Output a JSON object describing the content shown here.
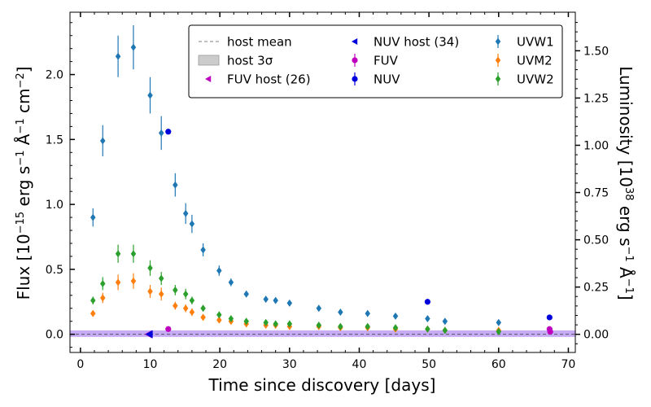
{
  "chart_data": {
    "type": "scatter",
    "xlabel": "Time since discovery [days]",
    "ylabel": "Flux [10^-15 erg s^-1 Å^-1 cm^-2]",
    "ylabel_right": "Luminosity [10^38 erg s^-1 Å^-1]",
    "xlim": [
      -1.5,
      71
    ],
    "ylim": [
      -0.14,
      2.48
    ],
    "ylim_right": [
      -0.096,
      1.704
    ],
    "xticks": [
      0,
      10,
      20,
      30,
      40,
      50,
      60,
      70
    ],
    "yticks": [
      0.0,
      0.5,
      1.0,
      1.5,
      2.0
    ],
    "yticks_right": [
      0.0,
      0.25,
      0.5,
      0.75,
      1.0,
      1.25,
      1.5
    ],
    "xtick_labels": [
      "0",
      "10",
      "20",
      "30",
      "40",
      "50",
      "60",
      "70"
    ],
    "ytick_labels": [
      "0.0",
      "0.5",
      "1.0",
      "1.5",
      "2.0"
    ],
    "ytick_labels_right": [
      "0.00",
      "0.25",
      "0.50",
      "0.75",
      "1.00",
      "1.25",
      "1.50"
    ],
    "legend_position": "top-right",
    "host": {
      "mean": 0.0,
      "band_3sigma": [
        -0.02,
        0.03
      ],
      "host_color": "#9966ee"
    },
    "series": [
      {
        "name": "UVW1",
        "color": "#1f77b4",
        "marker": "diamond",
        "points": [
          {
            "x": 1.8,
            "y": 0.9,
            "e": 0.07
          },
          {
            "x": 3.2,
            "y": 1.49,
            "e": 0.12
          },
          {
            "x": 5.4,
            "y": 2.14,
            "e": 0.16
          },
          {
            "x": 7.6,
            "y": 2.21,
            "e": 0.17
          },
          {
            "x": 10.0,
            "y": 1.84,
            "e": 0.14
          },
          {
            "x": 11.6,
            "y": 1.55,
            "e": 0.13
          },
          {
            "x": 13.6,
            "y": 1.15,
            "e": 0.09
          },
          {
            "x": 15.1,
            "y": 0.93,
            "e": 0.08
          },
          {
            "x": 16.0,
            "y": 0.85,
            "e": 0.07
          },
          {
            "x": 17.6,
            "y": 0.65,
            "e": 0.05
          },
          {
            "x": 19.9,
            "y": 0.49,
            "e": 0.04
          },
          {
            "x": 21.6,
            "y": 0.4,
            "e": 0.03
          },
          {
            "x": 23.8,
            "y": 0.31,
            "e": 0.02
          },
          {
            "x": 26.6,
            "y": 0.27,
            "e": 0.02
          },
          {
            "x": 28.0,
            "y": 0.26,
            "e": 0.02
          },
          {
            "x": 30.0,
            "y": 0.24,
            "e": 0.02
          },
          {
            "x": 34.2,
            "y": 0.2,
            "e": 0.015
          },
          {
            "x": 37.3,
            "y": 0.17,
            "e": 0.015
          },
          {
            "x": 41.2,
            "y": 0.16,
            "e": 0.015
          },
          {
            "x": 45.2,
            "y": 0.14,
            "e": 0.015
          },
          {
            "x": 49.8,
            "y": 0.12,
            "e": 0.015
          },
          {
            "x": 52.3,
            "y": 0.1,
            "e": 0.015
          },
          {
            "x": 60.0,
            "y": 0.09,
            "e": 0.015
          }
        ]
      },
      {
        "name": "UVM2",
        "color": "#ff7f0e",
        "marker": "diamond",
        "points": [
          {
            "x": 1.8,
            "y": 0.16,
            "e": 0.02
          },
          {
            "x": 3.2,
            "y": 0.28,
            "e": 0.04
          },
          {
            "x": 5.4,
            "y": 0.4,
            "e": 0.06
          },
          {
            "x": 7.6,
            "y": 0.41,
            "e": 0.06
          },
          {
            "x": 10.0,
            "y": 0.33,
            "e": 0.05
          },
          {
            "x": 11.6,
            "y": 0.31,
            "e": 0.05
          },
          {
            "x": 13.6,
            "y": 0.22,
            "e": 0.03
          },
          {
            "x": 15.1,
            "y": 0.2,
            "e": 0.03
          },
          {
            "x": 16.0,
            "y": 0.17,
            "e": 0.03
          },
          {
            "x": 17.6,
            "y": 0.13,
            "e": 0.02
          },
          {
            "x": 19.9,
            "y": 0.11,
            "e": 0.015
          },
          {
            "x": 21.6,
            "y": 0.1,
            "e": 0.015
          },
          {
            "x": 23.8,
            "y": 0.08,
            "e": 0.01
          },
          {
            "x": 26.6,
            "y": 0.07,
            "e": 0.01
          },
          {
            "x": 28.0,
            "y": 0.07,
            "e": 0.01
          },
          {
            "x": 30.0,
            "y": 0.06,
            "e": 0.01
          },
          {
            "x": 34.2,
            "y": 0.06,
            "e": 0.01
          },
          {
            "x": 37.3,
            "y": 0.05,
            "e": 0.01
          },
          {
            "x": 41.2,
            "y": 0.05,
            "e": 0.01
          },
          {
            "x": 45.2,
            "y": 0.04,
            "e": 0.01
          },
          {
            "x": 49.8,
            "y": 0.04,
            "e": 0.01
          },
          {
            "x": 52.3,
            "y": 0.03,
            "e": 0.01
          },
          {
            "x": 60.0,
            "y": 0.03,
            "e": 0.01
          }
        ]
      },
      {
        "name": "UVW2",
        "color": "#2ca02c",
        "marker": "diamond",
        "points": [
          {
            "x": 1.8,
            "y": 0.26,
            "e": 0.03
          },
          {
            "x": 3.2,
            "y": 0.39,
            "e": 0.05
          },
          {
            "x": 5.4,
            "y": 0.62,
            "e": 0.07
          },
          {
            "x": 7.6,
            "y": 0.62,
            "e": 0.07
          },
          {
            "x": 10.0,
            "y": 0.51,
            "e": 0.06
          },
          {
            "x": 11.6,
            "y": 0.43,
            "e": 0.05
          },
          {
            "x": 13.6,
            "y": 0.34,
            "e": 0.04
          },
          {
            "x": 15.1,
            "y": 0.31,
            "e": 0.04
          },
          {
            "x": 16.0,
            "y": 0.26,
            "e": 0.03
          },
          {
            "x": 17.6,
            "y": 0.2,
            "e": 0.02
          },
          {
            "x": 19.9,
            "y": 0.15,
            "e": 0.02
          },
          {
            "x": 21.6,
            "y": 0.12,
            "e": 0.015
          },
          {
            "x": 23.8,
            "y": 0.1,
            "e": 0.015
          },
          {
            "x": 26.6,
            "y": 0.09,
            "e": 0.01
          },
          {
            "x": 28.0,
            "y": 0.08,
            "e": 0.01
          },
          {
            "x": 30.0,
            "y": 0.08,
            "e": 0.01
          },
          {
            "x": 34.2,
            "y": 0.07,
            "e": 0.01
          },
          {
            "x": 37.3,
            "y": 0.06,
            "e": 0.01
          },
          {
            "x": 41.2,
            "y": 0.06,
            "e": 0.01
          },
          {
            "x": 45.2,
            "y": 0.05,
            "e": 0.01
          },
          {
            "x": 49.8,
            "y": 0.04,
            "e": 0.01
          },
          {
            "x": 52.3,
            "y": 0.03,
            "e": 0.01
          },
          {
            "x": 60.0,
            "y": 0.02,
            "e": 0.01
          }
        ]
      },
      {
        "name": "FUV",
        "color": "#bf00bf",
        "marker": "circle",
        "points": [
          {
            "x": 12.6,
            "y": 0.04
          },
          {
            "x": 67.3,
            "y": 0.04
          },
          {
            "x": 67.4,
            "y": 0.02
          }
        ]
      },
      {
        "name": "NUV",
        "color": "#0000dd",
        "marker": "circle",
        "points": [
          {
            "x": 12.6,
            "y": 1.56
          },
          {
            "x": 49.8,
            "y": 0.25
          },
          {
            "x": 67.3,
            "y": 0.13
          }
        ]
      },
      {
        "name": "FUV host (26)",
        "color": "#bf00bf",
        "marker": "triangle-left",
        "points": [
          {
            "x": 9.8,
            "y": 0.0
          }
        ]
      },
      {
        "name": "NUV host (34)",
        "color": "#0000dd",
        "marker": "triangle-left",
        "points": [
          {
            "x": 9.9,
            "y": 0.0
          }
        ]
      }
    ],
    "legend": [
      {
        "label": "host mean",
        "kind": "dashed-line",
        "color": "#808080"
      },
      {
        "label": "host 3σ",
        "kind": "patch",
        "color": "#cccccc"
      },
      {
        "label": "FUV host (26)",
        "kind": "triangle-left",
        "color": "#bf00bf"
      },
      {
        "label": "NUV host (34)",
        "kind": "triangle-left",
        "color": "#0000dd"
      },
      {
        "label": "FUV",
        "kind": "circle-err",
        "color": "#bf00bf"
      },
      {
        "label": "NUV",
        "kind": "circle-err",
        "color": "#0000dd"
      },
      {
        "label": "UVW1",
        "kind": "diamond-err",
        "color": "#1f77b4"
      },
      {
        "label": "UVM2",
        "kind": "diamond-err",
        "color": "#ff7f0e"
      },
      {
        "label": "UVW2",
        "kind": "diamond-err",
        "color": "#2ca02c"
      }
    ]
  }
}
